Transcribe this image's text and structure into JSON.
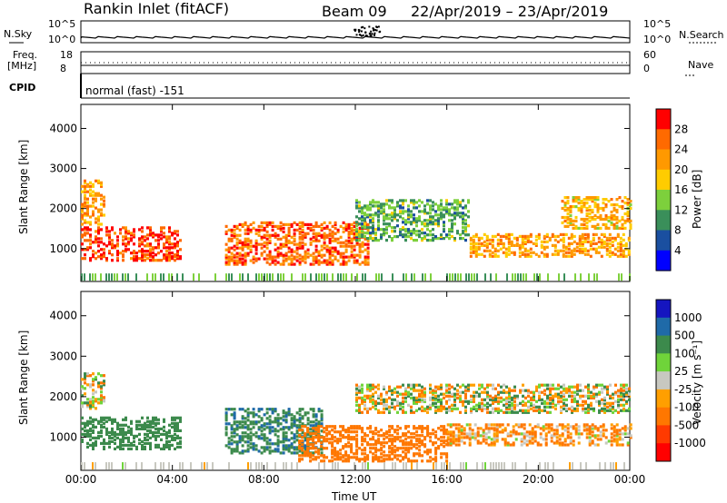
{
  "header": {
    "station": "Rankin Inlet (fitACF)",
    "beam": "Beam 09",
    "date_range": "22/Apr/2019 – 23/Apr/2019"
  },
  "top_panels": {
    "nsky_label": "N.Sky",
    "nsearch_label": "N.Search",
    "count_ticks": [
      "10^5",
      "10^0"
    ],
    "freq_label_line1": "Freq.",
    "freq_label_line2": "[MHz]",
    "freq_ticks": [
      "18",
      "8"
    ],
    "nave_label": "Nave",
    "nave_ticks": [
      "60",
      "0"
    ],
    "cpid_label": "CPID",
    "cpid_value": "normal (fast) -151"
  },
  "colorbars": {
    "power": {
      "label": "Power [dB]",
      "ticks": [
        "28",
        "24",
        "20",
        "16",
        "12",
        "8",
        "4"
      ],
      "colors": [
        "#ff0000",
        "#ff6a00",
        "#ff9900",
        "#ffcc00",
        "#7dd03c",
        "#3a8f5a",
        "#1a4fa0",
        "#0000ff"
      ]
    },
    "velocity": {
      "label": "Velocity [m s⁻¹]",
      "ticks": [
        "1000",
        "500",
        "100",
        "25",
        "-25",
        "-100",
        "-500",
        "-1000"
      ],
      "colors": [
        "#1515c0",
        "#1f6aa8",
        "#3c8a4c",
        "#6fd43a",
        "#c8c8c0",
        "#ff9f00",
        "#ff7700",
        "#ff3a00",
        "#ff0000"
      ]
    }
  },
  "chart_data": [
    {
      "type": "heatmap",
      "title": "",
      "ylabel": "Slant Range [km]",
      "xlabel": "",
      "ylim": [
        180,
        4600
      ],
      "yticks": [
        "4000",
        "3000",
        "2000",
        "1000"
      ],
      "x_ticks": [
        "00:00",
        "04:00",
        "08:00",
        "12:00",
        "16:00",
        "20:00",
        "00:00"
      ],
      "colorbar": "power",
      "echo_bands": [
        {
          "t_start": 0.0,
          "t_end": 4.4,
          "range_lo": 700,
          "range_hi": 1550,
          "value": 26
        },
        {
          "t_start": 0.0,
          "t_end": 1.0,
          "range_lo": 1600,
          "range_hi": 2700,
          "value": 20
        },
        {
          "t_start": 6.3,
          "t_end": 12.5,
          "range_lo": 600,
          "range_hi": 1650,
          "value": 24
        },
        {
          "t_start": 12.0,
          "t_end": 17.0,
          "range_lo": 1200,
          "range_hi": 2200,
          "value": 10
        },
        {
          "t_start": 17.0,
          "t_end": 24.0,
          "range_lo": 800,
          "range_hi": 1350,
          "value": 20
        },
        {
          "t_start": 21.0,
          "t_end": 24.0,
          "range_lo": 1500,
          "range_hi": 2300,
          "value": 18
        }
      ]
    },
    {
      "type": "heatmap",
      "title": "",
      "ylabel": "Slant Range [km]",
      "xlabel": "Time UT",
      "ylim": [
        180,
        4600
      ],
      "yticks": [
        "4000",
        "3000",
        "2000",
        "1000"
      ],
      "x_ticks": [
        "00:00",
        "04:00",
        "08:00",
        "12:00",
        "16:00",
        "20:00",
        "00:00"
      ],
      "colorbar": "velocity",
      "echo_bands": [
        {
          "t_start": 0.0,
          "t_end": 4.4,
          "range_lo": 700,
          "range_hi": 1500,
          "value": 300
        },
        {
          "t_start": 0.0,
          "t_end": 1.0,
          "range_lo": 1700,
          "range_hi": 2600,
          "value": 0
        },
        {
          "t_start": 6.3,
          "t_end": 10.5,
          "range_lo": 600,
          "range_hi": 1700,
          "value": 400
        },
        {
          "t_start": 9.5,
          "t_end": 16.0,
          "range_lo": 400,
          "range_hi": 1300,
          "value": -300
        },
        {
          "t_start": 12.0,
          "t_end": 24.0,
          "range_lo": 1600,
          "range_hi": 2300,
          "value": 0
        },
        {
          "t_start": 16.0,
          "t_end": 24.0,
          "range_lo": 800,
          "range_hi": 1300,
          "value": -150
        }
      ]
    }
  ]
}
